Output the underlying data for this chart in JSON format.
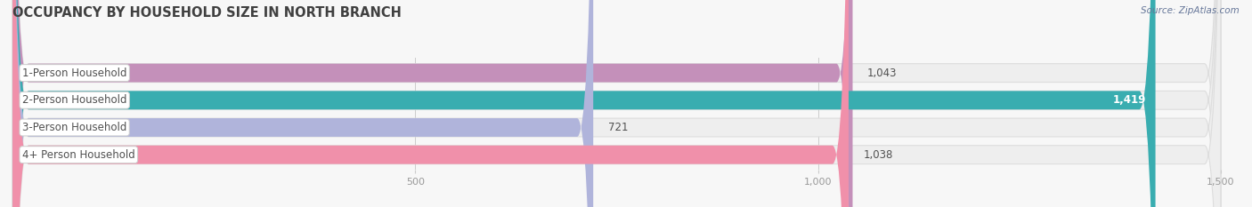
{
  "title": "OCCUPANCY BY HOUSEHOLD SIZE IN NORTH BRANCH",
  "source": "Source: ZipAtlas.com",
  "categories": [
    "1-Person Household",
    "2-Person Household",
    "3-Person Household",
    "4+ Person Household"
  ],
  "values": [
    1043,
    1419,
    721,
    1038
  ],
  "bar_colors": [
    "#c490ba",
    "#39adb0",
    "#b0b4db",
    "#f090aa"
  ],
  "xlim": [
    0,
    1500
  ],
  "xticks": [
    500,
    1000,
    1500
  ],
  "xtick_labels": [
    "500",
    "1,000",
    "1,500"
  ],
  "value_labels": [
    "1,043",
    "1,419",
    "721",
    "1,038"
  ],
  "value_label_inside": [
    false,
    true,
    false,
    false
  ],
  "background_color": "#f7f7f7",
  "bar_bg_color": "#eeeeee",
  "bar_bg_edge_color": "#dddddd",
  "title_color": "#404040",
  "label_color": "#505050",
  "tick_color": "#999999",
  "source_color": "#667799",
  "bar_height": 0.68,
  "label_fontsize": 8.5,
  "title_fontsize": 10.5,
  "value_fontsize": 8.5
}
